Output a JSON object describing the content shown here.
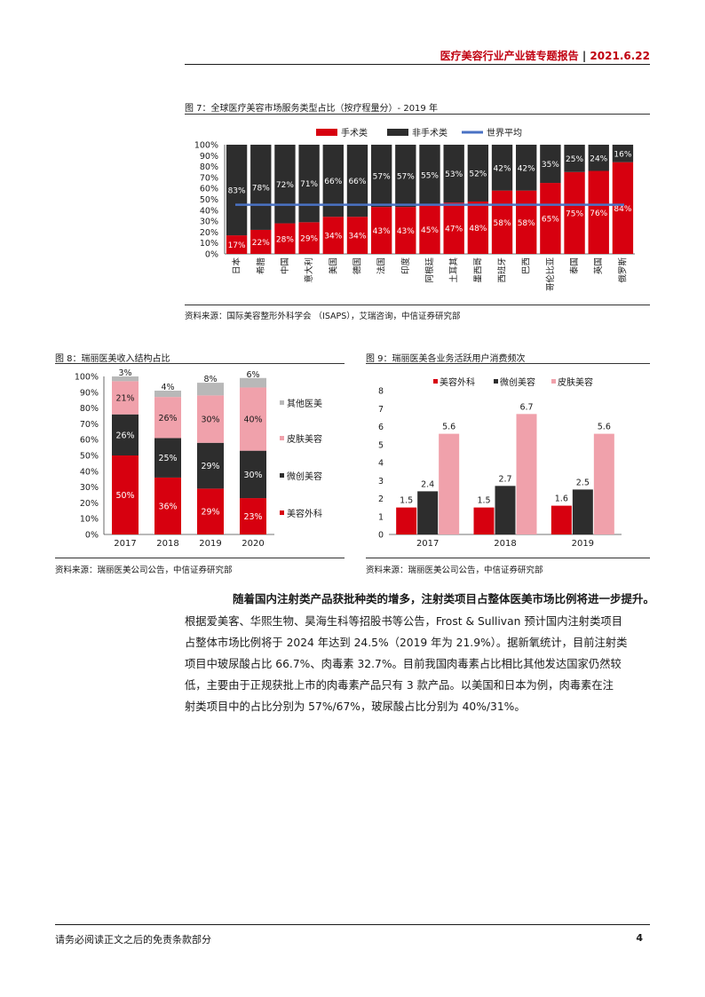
{
  "header": {
    "report_title": "医疗美容行业产业链专题报告",
    "separator": "|",
    "date": "2021.6.22"
  },
  "figure7": {
    "caption": "图 7：全球医疗美容市场服务类型占比（按疗程量分）- 2019 年",
    "source": "资料来源：国际美容整形外科学会 （ISAPS），艾瑞咨询，中信证券研究部"
  },
  "figure8": {
    "caption": "图 8：瑞丽医美收入结构占比",
    "source": "资料来源：瑞丽医美公司公告，中信证券研究部"
  },
  "figure9": {
    "caption": "图 9：瑞丽医美各业务活跃用户消费频次",
    "source": "资料来源：瑞丽医美公司公告，中信证券研究部"
  },
  "paragraph": {
    "lead": "随着国内注射类产品获批种类的增多，注射类项目占整体医美市场比例将进一步提升。",
    "lines": [
      "根据爱美客、华熙生物、昊海生科等招股书等公告，Frost & Sullivan 预计国内注射类项目",
      "占整体市场比例将于 2024 年达到 24.5%（2019 年为 21.9%）。据新氧统计，目前注射类",
      "项目中玻尿酸占比 66.7%、肉毒素 32.7%。目前我国肉毒素占比相比其他发达国家仍然较",
      "低，主要由于正规获批上市的肉毒素产品只有 3 款产品。以美国和日本为例，肉毒素在注",
      "射类项目中的占比分别为 57%/67%，玻尿酸占比分别为 40%/31%。"
    ]
  },
  "footer": {
    "disclaimer": "请务必阅读正文之后的免责条款部分",
    "page_number": "4"
  },
  "colors": {
    "red": "#d7000f",
    "dark": "#2d2d2d",
    "pink": "#f0a1ab",
    "gray": "#b8b8b8",
    "blue": "#4a72c4"
  },
  "chart_data": [
    {
      "id": "fig7",
      "type": "bar",
      "stacked": true,
      "title": "全球医疗美容市场服务类型占比（按疗程量分）- 2019 年",
      "categories": [
        "日本",
        "希腊",
        "中国",
        "意大利",
        "美国",
        "德国",
        "法国",
        "印度",
        "阿根廷",
        "土耳其",
        "墨西哥",
        "西班牙",
        "巴西",
        "哥伦比亚",
        "泰国",
        "英国",
        "俄罗斯"
      ],
      "series": [
        {
          "name": "手术类",
          "values": [
            17,
            22,
            28,
            29,
            34,
            34,
            43,
            43,
            45,
            47,
            48,
            58,
            58,
            65,
            75,
            76,
            84
          ],
          "labels": [
            "17%",
            "22%",
            "28%",
            "29%",
            "34%",
            "34%",
            "43%",
            "43%",
            "45%",
            "47%",
            "48%",
            "58%",
            "58%",
            "65%",
            "75%",
            "76%",
            "84%"
          ]
        },
        {
          "name": "非手术类",
          "values": [
            83,
            78,
            72,
            71,
            66,
            66,
            57,
            57,
            55,
            53,
            52,
            42,
            42,
            35,
            25,
            24,
            16
          ],
          "labels": [
            "83%",
            "78%",
            "72%",
            "71%",
            "66%",
            "66%",
            "57%",
            "57%",
            "55%",
            "53%",
            "52%",
            "42%",
            "42%",
            "35%",
            "25%",
            "24%",
            "16%"
          ]
        }
      ],
      "line": {
        "name": "世界平均",
        "value": 45
      },
      "ylim": [
        0,
        100
      ],
      "yticks": [
        "0%",
        "10%",
        "20%",
        "30%",
        "40%",
        "50%",
        "60%",
        "70%",
        "80%",
        "90%",
        "100%"
      ],
      "legend": "top"
    },
    {
      "id": "fig8",
      "type": "bar",
      "stacked": true,
      "title": "瑞丽医美收入结构占比",
      "categories": [
        "2017",
        "2018",
        "2019",
        "2020"
      ],
      "series": [
        {
          "name": "美容外科",
          "values": [
            50,
            36,
            29,
            23
          ],
          "labels": [
            "50%",
            "36%",
            "29%",
            "23%"
          ]
        },
        {
          "name": "微创美容",
          "values": [
            26,
            25,
            29,
            30
          ],
          "labels": [
            "26%",
            "25%",
            "29%",
            "30%"
          ]
        },
        {
          "name": "皮肤美容",
          "values": [
            21,
            26,
            30,
            40
          ],
          "labels": [
            "21%",
            "26%",
            "30%",
            "40%"
          ]
        },
        {
          "name": "其他医美",
          "values": [
            3,
            4,
            8,
            6
          ],
          "labels": [
            "3%",
            "4%",
            "8%",
            "6%"
          ]
        }
      ],
      "ylim": [
        0,
        100
      ],
      "yticks": [
        "0%",
        "10%",
        "20%",
        "30%",
        "40%",
        "50%",
        "60%",
        "70%",
        "80%",
        "90%",
        "100%"
      ],
      "legend": "right"
    },
    {
      "id": "fig9",
      "type": "bar",
      "stacked": false,
      "title": "瑞丽医美各业务活跃用户消费频次",
      "categories": [
        "2017",
        "2018",
        "2019"
      ],
      "series": [
        {
          "name": "美容外科",
          "values": [
            1.5,
            1.5,
            1.6
          ],
          "labels": [
            "1.5",
            "1.5",
            "1.6"
          ]
        },
        {
          "name": "微创美容",
          "values": [
            2.4,
            2.7,
            2.5
          ],
          "labels": [
            "2.4",
            "2.7",
            "2.5"
          ]
        },
        {
          "name": "皮肤美容",
          "values": [
            5.6,
            6.7,
            5.6
          ],
          "labels": [
            "5.6",
            "6.7",
            "5.6"
          ]
        }
      ],
      "ylim": [
        0,
        8
      ],
      "yticks": [
        "0",
        "1",
        "2",
        "3",
        "4",
        "5",
        "6",
        "7",
        "8"
      ],
      "legend": "top"
    }
  ]
}
